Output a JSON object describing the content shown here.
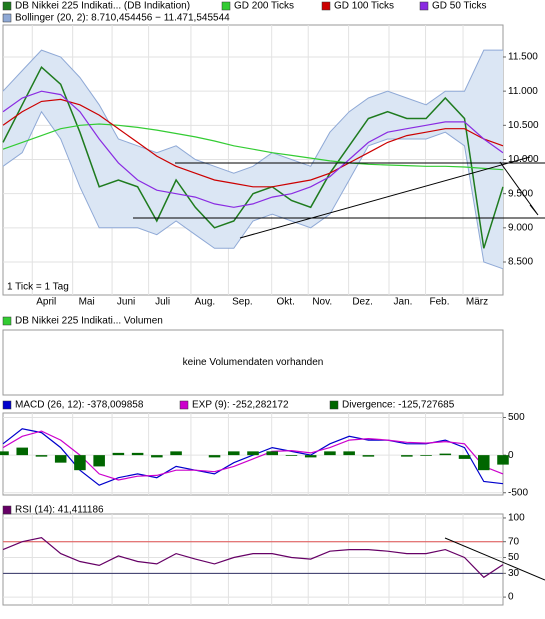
{
  "chart_data": [
    {
      "type": "line",
      "note": "1 Tick = 1 Tag",
      "x": [
        0,
        2,
        4,
        6,
        8,
        10,
        12,
        14,
        16,
        18,
        20,
        22,
        24,
        26,
        28,
        30,
        32,
        34,
        36,
        38,
        40,
        42,
        44,
        46,
        48,
        50,
        52
      ],
      "xlim": [
        0,
        52
      ],
      "xticks": [
        {
          "value": 4.5,
          "label": "April"
        },
        {
          "value": 8.7,
          "label": "Mai"
        },
        {
          "value": 12.8,
          "label": "Juni"
        },
        {
          "value": 16.6,
          "label": "Juli"
        },
        {
          "value": 21,
          "label": "Aug."
        },
        {
          "value": 24.9,
          "label": "Sep."
        },
        {
          "value": 29.4,
          "label": "Okt."
        },
        {
          "value": 33.2,
          "label": "Nov."
        },
        {
          "value": 37.4,
          "label": "Dez."
        },
        {
          "value": 41.6,
          "label": "Jan."
        },
        {
          "value": 45.4,
          "label": "Feb."
        },
        {
          "value": 49.3,
          "label": "März"
        }
      ],
      "ylim": [
        8017,
        11968
      ],
      "yticks": [
        {
          "value": 8500,
          "label": "8.500"
        },
        {
          "value": 9000,
          "label": "9.000"
        },
        {
          "value": 9500,
          "label": "9.500"
        },
        {
          "value": 10000,
          "label": "10.000"
        },
        {
          "value": 10500,
          "label": "10.500"
        },
        {
          "value": 11000,
          "label": "11.000"
        },
        {
          "value": 11500,
          "label": "11.500"
        }
      ],
      "band": {
        "name": "Bollinger (20, 2): 8.710,454456 − 11.471,545544",
        "color": "#8fa9d6",
        "fill": "#dbe6f4",
        "upper": [
          11000,
          11300,
          11600,
          11500,
          11200,
          10800,
          10300,
          10200,
          10100,
          10200,
          10000,
          9900,
          9800,
          9900,
          10100,
          10000,
          9900,
          10400,
          10700,
          10900,
          11000,
          10900,
          10800,
          11000,
          11000,
          11600,
          11600
        ],
        "lower": [
          9900,
          10100,
          10700,
          10300,
          9600,
          9000,
          9000,
          9000,
          8900,
          9100,
          8900,
          8700,
          8700,
          9100,
          9200,
          9100,
          9000,
          9200,
          9700,
          10200,
          10300,
          10300,
          10300,
          10400,
          10200,
          8500,
          8400
        ]
      },
      "series": [
        {
          "name": "DB Nikkei 225 Indikati... (DB Indikation)",
          "color": "#1e7b1e",
          "values": [
            10250,
            10800,
            11350,
            11100,
            10400,
            9600,
            9700,
            9600,
            9100,
            9700,
            9300,
            9000,
            9100,
            9500,
            9600,
            9400,
            9300,
            9800,
            10200,
            10600,
            10700,
            10600,
            10600,
            10900,
            10600,
            8700,
            9600
          ]
        },
        {
          "name": "GD 200 Ticks",
          "color": "#33cc33",
          "values": [
            10150,
            10250,
            10350,
            10450,
            10500,
            10520,
            10500,
            10470,
            10430,
            10380,
            10330,
            10270,
            10200,
            10150,
            10100,
            10060,
            10020,
            9980,
            9950,
            9930,
            9920,
            9910,
            9900,
            9900,
            9890,
            9870,
            9850
          ]
        },
        {
          "name": "GD 100 Ticks",
          "color": "#cc0000",
          "values": [
            10500,
            10700,
            10850,
            10880,
            10800,
            10650,
            10450,
            10250,
            10050,
            9900,
            9800,
            9700,
            9650,
            9600,
            9600,
            9650,
            9700,
            9800,
            9950,
            10100,
            10250,
            10350,
            10400,
            10450,
            10450,
            10300,
            10200
          ]
        },
        {
          "name": "GD 50 Ticks",
          "color": "#8a2be2",
          "values": [
            10700,
            10900,
            11000,
            10950,
            10700,
            10300,
            9950,
            9700,
            9550,
            9500,
            9450,
            9350,
            9300,
            9350,
            9450,
            9500,
            9600,
            9750,
            10000,
            10250,
            10400,
            10450,
            10500,
            10550,
            10550,
            10300,
            10100
          ]
        }
      ]
    },
    {
      "type": "empty",
      "legend": "DB Nikkei 225 Indikati... Volumen",
      "legend_color": "#33cc33",
      "message": "keine Volumendaten vorhanden"
    },
    {
      "type": "line",
      "x": [
        0,
        2,
        4,
        6,
        8,
        10,
        12,
        14,
        16,
        18,
        20,
        22,
        24,
        26,
        28,
        30,
        32,
        34,
        36,
        38,
        40,
        42,
        44,
        46,
        48,
        50,
        52
      ],
      "xlim": [
        0,
        52
      ],
      "ylim": [
        -530,
        560
      ],
      "yticks": [
        -500,
        0,
        500
      ],
      "series": [
        {
          "name": "MACD (26, 12): -378,009858",
          "color": "#0000cc",
          "values": [
            150,
            350,
            300,
            100,
            -200,
            -400,
            -300,
            -250,
            -300,
            -150,
            -200,
            -250,
            -100,
            0,
            100,
            50,
            0,
            150,
            250,
            200,
            200,
            150,
            150,
            200,
            100,
            -350,
            -380
          ]
        },
        {
          "name": "EXP (9): -252,282172",
          "color": "#cc00cc",
          "values": [
            100,
            250,
            320,
            200,
            0,
            -250,
            -330,
            -280,
            -270,
            -200,
            -200,
            -220,
            -150,
            -50,
            50,
            60,
            30,
            100,
            200,
            220,
            200,
            170,
            160,
            180,
            150,
            -150,
            -250
          ]
        },
        {
          "name": "Divergence: -125,727685",
          "color": "#006600",
          "kind": "bar",
          "values": [
            50,
            100,
            -20,
            -100,
            -200,
            -150,
            30,
            30,
            -30,
            50,
            0,
            -30,
            50,
            50,
            50,
            -10,
            -30,
            50,
            50,
            -20,
            0,
            -20,
            -10,
            20,
            -50,
            -200,
            -126
          ]
        }
      ]
    },
    {
      "type": "line",
      "x": [
        0,
        2,
        4,
        6,
        8,
        10,
        12,
        14,
        16,
        18,
        20,
        22,
        24,
        26,
        28,
        30,
        32,
        34,
        36,
        38,
        40,
        42,
        44,
        46,
        48,
        50,
        52
      ],
      "xlim": [
        0,
        52
      ],
      "ylim": [
        -10,
        105
      ],
      "yticks": [
        0,
        30,
        50,
        70,
        100
      ],
      "ref_lines": [
        {
          "value": 70,
          "color": "#e05050"
        },
        {
          "value": 30,
          "color": "#333366"
        }
      ],
      "series": [
        {
          "name": "RSI (14): 41,411186",
          "color": "#660066",
          "values": [
            60,
            70,
            75,
            55,
            45,
            40,
            52,
            45,
            42,
            55,
            48,
            42,
            50,
            55,
            55,
            50,
            48,
            58,
            60,
            60,
            58,
            55,
            55,
            60,
            50,
            25,
            41
          ]
        }
      ]
    }
  ]
}
